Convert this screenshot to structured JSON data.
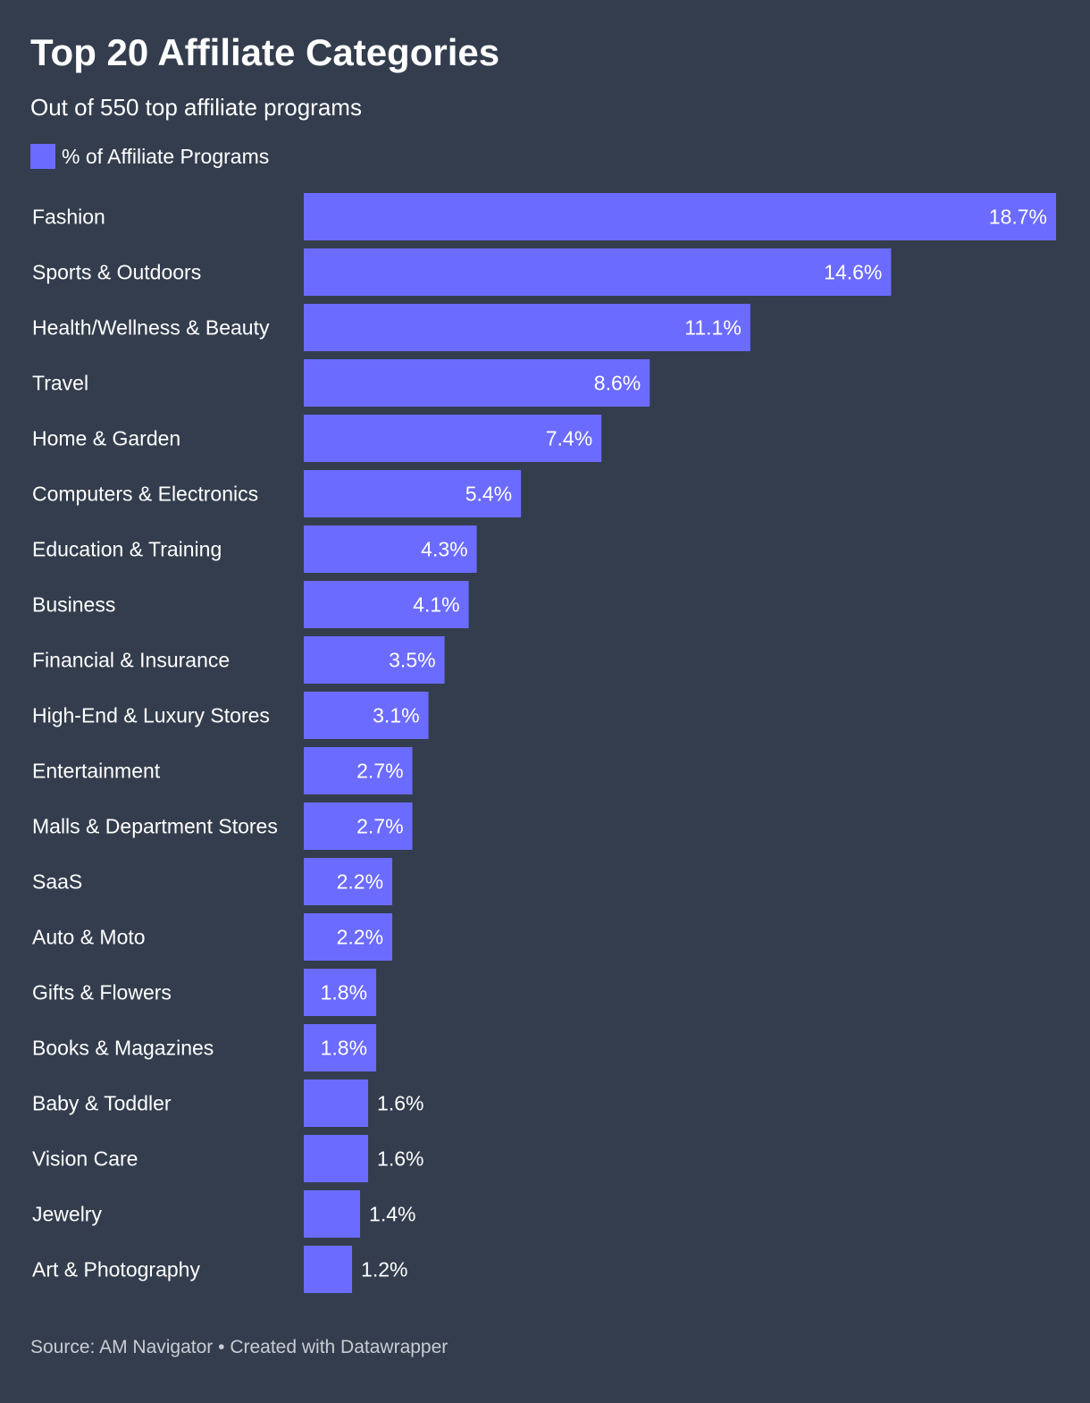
{
  "title": "Top 20 Affiliate Categories",
  "subtitle": "Out of 550 top affiliate programs",
  "legend": {
    "label": "% of Affiliate Programs",
    "color": "#6b6bff"
  },
  "footer": {
    "source_label": "Source:",
    "source": "AM Navigator",
    "separator": "•",
    "credit": "Created with Datawrapper"
  },
  "colors": {
    "background": "#333d4d",
    "bar": "#6b6bff",
    "text": "#ffffff",
    "footer_text": "#c9ccd3"
  },
  "chart_data": {
    "type": "bar",
    "orientation": "horizontal",
    "title": "Top 20 Affiliate Categories",
    "subtitle": "Out of 550 top affiliate programs",
    "series": [
      {
        "name": "% of Affiliate Programs",
        "values": [
          18.7,
          14.6,
          11.1,
          8.6,
          7.4,
          5.4,
          4.3,
          4.1,
          3.5,
          3.1,
          2.7,
          2.7,
          2.2,
          2.2,
          1.8,
          1.8,
          1.6,
          1.6,
          1.4,
          1.2
        ]
      }
    ],
    "categories": [
      "Fashion",
      "Sports & Outdoors",
      "Health/Wellness & Beauty",
      "Travel",
      "Home & Garden",
      "Computers & Electronics",
      "Education & Training",
      "Business",
      "Financial & Insurance",
      "High-End & Luxury Stores",
      "Entertainment",
      "Malls & Department Stores",
      "SaaS",
      "Auto & Moto",
      "Gifts & Flowers",
      "Books & Magazines",
      "Baby & Toddler",
      "Vision Care",
      "Jewelry",
      "Art & Photography"
    ],
    "value_labels": [
      "18.7%",
      "14.6%",
      "11.1%",
      "8.6%",
      "7.4%",
      "5.4%",
      "4.3%",
      "4.1%",
      "3.5%",
      "3.1%",
      "2.7%",
      "2.7%",
      "2.2%",
      "2.2%",
      "1.8%",
      "1.8%",
      "1.6%",
      "1.6%",
      "1.4%",
      "1.2%"
    ],
    "xlim": [
      0,
      18.7
    ],
    "xlabel": "",
    "ylabel": "",
    "grid": false,
    "legend_position": "top-left"
  }
}
